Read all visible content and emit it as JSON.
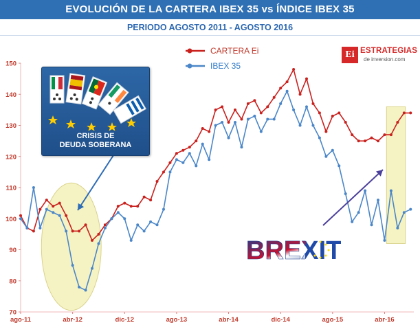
{
  "header": {
    "title": "EVOLUCIÓN DE LA CARTERA IBEX 35 vs ÍNDICE IBEX 35",
    "subtitle": "PERIODO AGOSTO 2011 - AGOSTO 2016"
  },
  "brand": {
    "logo_letters": "Ei",
    "name": "ESTRATEGIAS",
    "tagline": "de inversion.com"
  },
  "annotations": {
    "crisis_label_line1": "CRISIS DE",
    "crisis_label_line2": "DEUDA SOBERANA",
    "brexit_label": "BREXIT"
  },
  "colors": {
    "cartera": "#c9211e",
    "ibex": "#4a86c8",
    "title_bg": "#2f6fb3",
    "highlight": "#f5f3c4"
  },
  "chart_data": {
    "type": "line",
    "title": "EVOLUCIÓN DE LA CARTERA IBEX 35 vs ÍNDICE IBEX 35",
    "subtitle": "PERIODO AGOSTO 2011 - AGOSTO 2016",
    "xlabel": "",
    "ylabel": "",
    "ylim": [
      70,
      150
    ],
    "yticks": [
      70,
      80,
      90,
      100,
      110,
      120,
      130,
      140,
      150
    ],
    "xtick_labels": [
      "ago-11",
      "abr-12",
      "dic-12",
      "ago-13",
      "abr-14",
      "dic-14",
      "ago-15",
      "abr-16"
    ],
    "xtick_months": [
      0,
      8,
      16,
      24,
      32,
      40,
      48,
      56
    ],
    "x_unit": "months since ago-11",
    "xlim": [
      0,
      60.5
    ],
    "legend": {
      "placement": "top-center",
      "entries": [
        "CARTERA Ei",
        "IBEX 35"
      ]
    },
    "grid": false,
    "series": [
      {
        "name": "CARTERA Ei",
        "x": [
          0,
          1,
          2,
          3,
          4,
          5,
          6,
          7,
          8,
          9,
          10,
          11,
          12,
          13,
          14,
          15,
          16,
          17,
          18,
          19,
          20,
          21,
          22,
          23,
          24,
          25,
          26,
          27,
          28,
          29,
          30,
          31,
          32,
          33,
          34,
          35,
          36,
          37,
          38,
          39,
          40,
          41,
          42,
          43,
          44,
          45,
          46,
          47,
          48,
          49,
          50,
          51,
          52,
          53,
          54,
          55,
          56,
          57,
          58,
          59,
          60
        ],
        "values": [
          101,
          97,
          96,
          103,
          106,
          104,
          105,
          101,
          96,
          96,
          98,
          93,
          95,
          98,
          100,
          104,
          105,
          104,
          104,
          107,
          106,
          112,
          115,
          118,
          121,
          122,
          123,
          125,
          129,
          128,
          135,
          136,
          131,
          135,
          132,
          137,
          138,
          134,
          136,
          139,
          142,
          144,
          148,
          140,
          145,
          137,
          134,
          128,
          133,
          134,
          131,
          127,
          125,
          125,
          126,
          125,
          127,
          127,
          131,
          134,
          134
        ]
      },
      {
        "name": "IBEX 35",
        "x": [
          0,
          1,
          2,
          3,
          4,
          5,
          6,
          7,
          8,
          9,
          10,
          11,
          12,
          13,
          14,
          15,
          16,
          17,
          18,
          19,
          20,
          21,
          22,
          23,
          24,
          25,
          26,
          27,
          28,
          29,
          30,
          31,
          32,
          33,
          34,
          35,
          36,
          37,
          38,
          39,
          40,
          41,
          42,
          43,
          44,
          45,
          46,
          47,
          48,
          49,
          50,
          51,
          52,
          53,
          54,
          55,
          56,
          57,
          58,
          59,
          60
        ],
        "values": [
          100,
          97,
          110,
          97,
          103,
          102,
          101,
          96,
          85,
          78,
          77,
          84,
          92,
          97,
          100,
          102,
          100,
          93,
          98,
          96,
          99,
          98,
          103,
          115,
          119,
          118,
          121,
          117,
          124,
          119,
          130,
          131,
          126,
          131,
          123,
          132,
          133,
          128,
          132,
          132,
          137,
          141,
          135,
          130,
          136,
          130,
          126,
          120,
          122,
          117,
          108,
          99,
          102,
          109,
          98,
          106,
          93,
          109,
          97,
          102,
          103
        ]
      }
    ],
    "highlight_regions": [
      "crisis-de-deuda-soberana",
      "brexit"
    ]
  }
}
